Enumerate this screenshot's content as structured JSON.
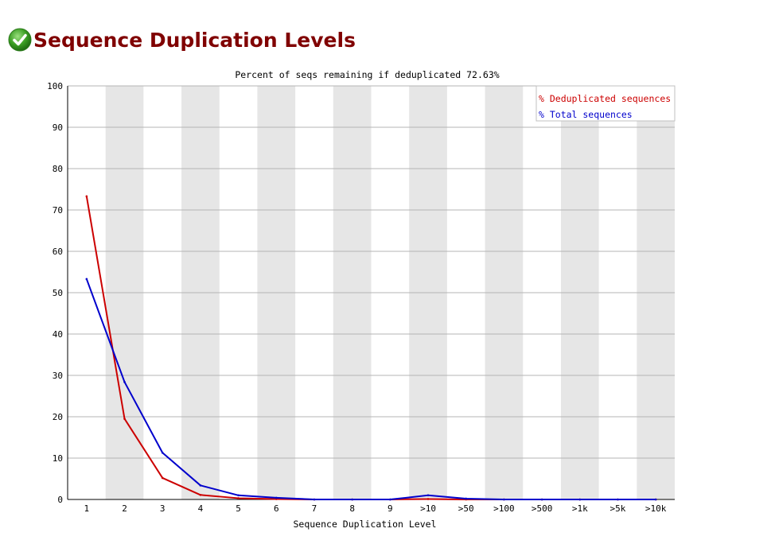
{
  "header": {
    "title": "Sequence Duplication Levels",
    "status_icon": "check-circle-icon",
    "status_color": "#3a9d23"
  },
  "chart_data": {
    "type": "line",
    "title": "Percent of seqs remaining if deduplicated 72.63%",
    "xlabel": "Sequence Duplication Level",
    "ylabel": "",
    "categories": [
      "1",
      "2",
      "3",
      "4",
      "5",
      "6",
      "7",
      "8",
      "9",
      ">10",
      ">50",
      ">100",
      ">500",
      ">1k",
      ">5k",
      ">10k"
    ],
    "ylim": [
      0,
      100
    ],
    "yticks": [
      0,
      10,
      20,
      30,
      40,
      50,
      60,
      70,
      80,
      90,
      100
    ],
    "grid": true,
    "legend_position": "top-right",
    "series": [
      {
        "name": "% Deduplicated sequences",
        "color": "#cc0000",
        "values": [
          73.3,
          19.5,
          5.2,
          1.1,
          0.3,
          0.1,
          0.0,
          0.0,
          0.0,
          0.1,
          0.0,
          0.0,
          0.0,
          0.0,
          0.0,
          0.0
        ]
      },
      {
        "name": "% Total sequences",
        "color": "#0000cc",
        "values": [
          53.3,
          28.4,
          11.3,
          3.4,
          1.0,
          0.4,
          0.0,
          0.0,
          0.0,
          1.0,
          0.2,
          0.0,
          0.0,
          0.0,
          0.0,
          0.0
        ]
      }
    ]
  }
}
